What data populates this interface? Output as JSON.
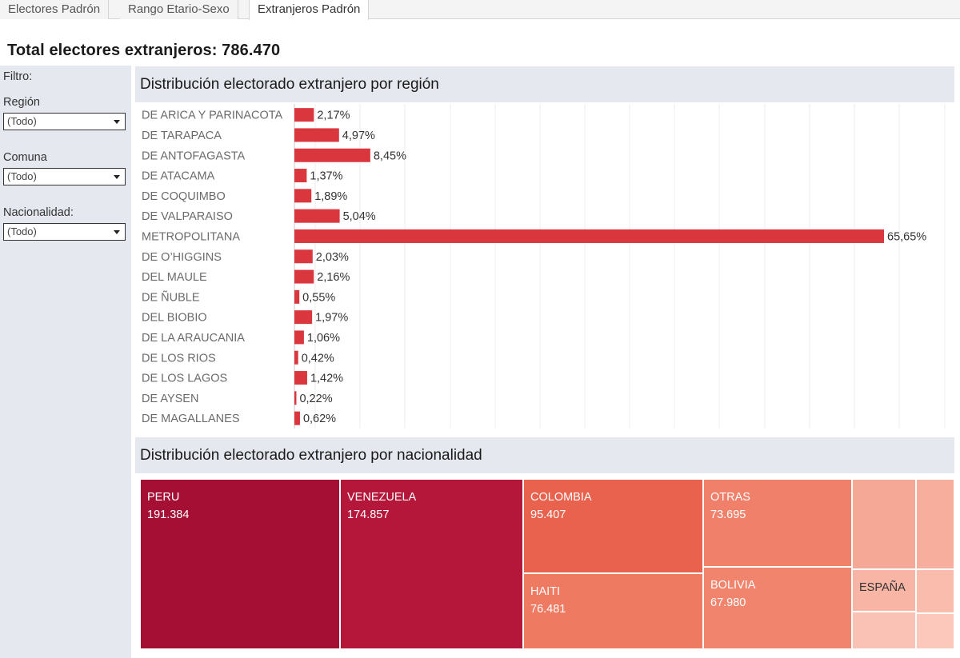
{
  "tabs": [
    {
      "label": "Electores Padrón",
      "active": false
    },
    {
      "label": "Rango Etario-Sexo",
      "active": false
    },
    {
      "label": "Extranjeros Padrón",
      "active": true
    }
  ],
  "summary": {
    "total_label": "Total electores extranjeros: 786.470"
  },
  "filters": {
    "title": "Filtro:",
    "region": {
      "label": "Región",
      "value": "(Todo)"
    },
    "comuna": {
      "label": "Comuna",
      "value": "(Todo)"
    },
    "nacionalidad": {
      "label": "Nacionalidad:",
      "value": "(Todo)"
    }
  },
  "colors": {
    "bar": "#d9363e",
    "panel": "#e5e8ef"
  },
  "chart_data": [
    {
      "type": "bar",
      "orientation": "horizontal",
      "title": "Distribución electorado extranjero por región",
      "categories": [
        "DE ARICA Y PARINACOTA",
        "DE TARAPACA",
        "DE ANTOFAGASTA",
        "DE ATACAMA",
        "DE COQUIMBO",
        "DE VALPARAISO",
        "METROPOLITANA",
        "DE O'HIGGINS",
        "DEL MAULE",
        "DE ÑUBLE",
        "DEL BIOBIO",
        "DE LA ARAUCANIA",
        "DE LOS RIOS",
        "DE LOS LAGOS",
        "DE AYSEN",
        "DE MAGALLANES"
      ],
      "values": [
        2.17,
        4.97,
        8.45,
        1.37,
        1.89,
        5.04,
        65.65,
        2.03,
        2.16,
        0.55,
        1.97,
        1.06,
        0.42,
        1.42,
        0.22,
        0.62
      ],
      "value_labels": [
        "2,17%",
        "4,97%",
        "8,45%",
        "1,37%",
        "1,89%",
        "5,04%",
        "65,65%",
        "2,03%",
        "2,16%",
        "0,55%",
        "1,97%",
        "1,06%",
        "0,42%",
        "1,42%",
        "0,22%",
        "0,62%"
      ],
      "grid": true
    },
    {
      "type": "treemap",
      "title": "Distribución electorado extranjero por nacionalidad",
      "items": [
        {
          "name": "PERU",
          "value": 191384,
          "value_label": "191.384",
          "color": "#a50f34"
        },
        {
          "name": "VENEZUELA",
          "value": 174857,
          "value_label": "174.857",
          "color": "#b5173a"
        },
        {
          "name": "COLOMBIA",
          "value": 95407,
          "value_label": "95.407",
          "color": "#e8624e"
        },
        {
          "name": "HAITI",
          "value": 76481,
          "value_label": "76.481",
          "color": "#ef7a62"
        },
        {
          "name": "OTRAS",
          "value": 73695,
          "value_label": "73.695",
          "color": "#f0806a"
        },
        {
          "name": "BOLIVIA",
          "value": 67980,
          "value_label": "67.980",
          "color": "#f0846d"
        },
        {
          "name": "ESPAÑA",
          "value": null,
          "value_label": "",
          "color": "#f8b5a5"
        },
        {
          "name": "",
          "value": null,
          "value_label": "",
          "color": "#f6a897"
        },
        {
          "name": "",
          "value": null,
          "value_label": "",
          "color": "#f8ae9d"
        },
        {
          "name": "",
          "value": null,
          "value_label": "",
          "color": "#f9bcad"
        },
        {
          "name": "",
          "value": null,
          "value_label": "",
          "color": "#fac2b4"
        },
        {
          "name": "",
          "value": null,
          "value_label": "",
          "color": "#fbc8bb"
        }
      ]
    }
  ]
}
